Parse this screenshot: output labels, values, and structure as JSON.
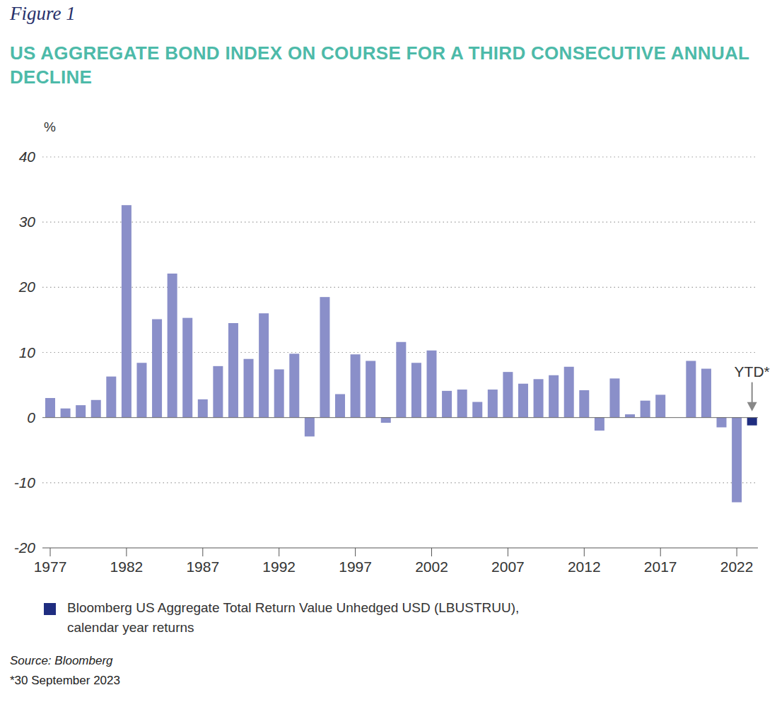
{
  "chart_data": {
    "type": "bar",
    "figure_label": "Figure 1",
    "title": "US AGGREGATE BOND INDEX ON COURSE FOR A THIRD CONSECUTIVE ANNUAL DECLINE",
    "ylabel": "%",
    "categories": [
      "1977",
      null,
      null,
      null,
      null,
      "1982",
      null,
      null,
      null,
      null,
      "1987",
      null,
      null,
      null,
      null,
      "1992",
      null,
      null,
      null,
      null,
      "1997",
      null,
      null,
      null,
      null,
      "2002",
      null,
      null,
      null,
      null,
      "2007",
      null,
      null,
      null,
      null,
      "2012",
      null,
      null,
      null,
      null,
      "2017",
      null,
      null,
      null,
      null,
      "2022",
      null
    ],
    "series": [
      {
        "name": "Bloomberg US Aggregate Total Return Value Unhedged USD (LBUSTRUU), calendar year returns",
        "color": "#1f2d80",
        "values": [
          3.0,
          1.4,
          1.9,
          2.7,
          6.3,
          32.6,
          8.4,
          15.1,
          22.1,
          15.3,
          2.8,
          7.9,
          14.5,
          9.0,
          16.0,
          7.4,
          9.8,
          -2.9,
          18.5,
          3.6,
          9.7,
          8.7,
          -0.8,
          11.6,
          8.4,
          10.3,
          4.1,
          4.3,
          2.4,
          4.3,
          7.0,
          5.2,
          5.9,
          6.5,
          7.8,
          4.2,
          -2.0,
          6.0,
          0.5,
          2.6,
          3.5,
          0.0,
          8.7,
          7.5,
          -1.5,
          -13.0,
          -1.2
        ]
      }
    ],
    "colors": [
      "#8a8fc9",
      "#8a8fc9",
      "#8a8fc9",
      "#8a8fc9",
      "#8a8fc9",
      "#8a8fc9",
      "#8a8fc9",
      "#8a8fc9",
      "#8a8fc9",
      "#8a8fc9",
      "#8a8fc9",
      "#8a8fc9",
      "#8a8fc9",
      "#8a8fc9",
      "#8a8fc9",
      "#8a8fc9",
      "#8a8fc9",
      "#8a8fc9",
      "#8a8fc9",
      "#8a8fc9",
      "#8a8fc9",
      "#8a8fc9",
      "#8a8fc9",
      "#8a8fc9",
      "#8a8fc9",
      "#8a8fc9",
      "#8a8fc9",
      "#8a8fc9",
      "#8a8fc9",
      "#8a8fc9",
      "#8a8fc9",
      "#8a8fc9",
      "#8a8fc9",
      "#8a8fc9",
      "#8a8fc9",
      "#8a8fc9",
      "#8a8fc9",
      "#8a8fc9",
      "#8a8fc9",
      "#8a8fc9",
      "#8a8fc9",
      "#8a8fc9",
      "#8a8fc9",
      "#8a8fc9",
      "#8a8fc9",
      "#8a8fc9",
      "#1f2d80"
    ],
    "ylim": [
      -20,
      40
    ],
    "yticks": [
      -20,
      -10,
      0,
      10,
      20,
      30,
      40
    ],
    "grid": true,
    "annotations": [
      {
        "text": "YTD*",
        "index": 46
      }
    ],
    "source": "Source: Bloomberg",
    "note": "*30 September 2023"
  }
}
